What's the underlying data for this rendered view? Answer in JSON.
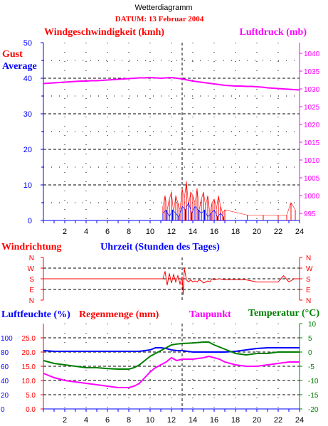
{
  "header": {
    "title": "Wetterdiagramm",
    "date": "DATUM: 13 Februar 2004"
  },
  "colors": {
    "wind_gust": "#ff0000",
    "wind_avg": "#0000ff",
    "pressure": "#ff00ff",
    "direction": "#ff0000",
    "humidity": "#0000ff",
    "rain": "#ff0000",
    "dewpoint": "#ff00ff",
    "temperature": "#008000",
    "axis": "#000000"
  },
  "chart_data": [
    {
      "id": "wind",
      "type": "line",
      "title": "",
      "labels": {
        "left_title": "Windgeschwindigkeit (kmh)",
        "right_title": "Luftdruck (mb)",
        "gust": "Gust",
        "average": "Average"
      },
      "xlim": [
        0,
        24
      ],
      "xticks": [
        "2",
        "4",
        "6",
        "8",
        "10",
        "12",
        "14",
        "16",
        "18",
        "20",
        "22",
        "24"
      ],
      "xticks_minor": [
        0,
        1,
        2,
        3,
        4,
        5,
        6,
        7,
        8,
        9,
        10,
        11,
        12,
        13,
        14,
        15,
        16,
        17,
        18,
        19,
        20,
        21,
        22,
        23,
        24
      ],
      "ylim_left": [
        0,
        50
      ],
      "yticks_left": [
        "0",
        "10",
        "20",
        "30",
        "40",
        "50"
      ],
      "ylim_right": [
        993,
        1043
      ],
      "yticks_right": [
        "995",
        "1000",
        "1005",
        "1010",
        "1015",
        "1020",
        "1025",
        "1030",
        "1035",
        "1040"
      ],
      "grid_y_left": [
        5,
        10,
        15,
        20,
        25,
        30,
        35,
        40,
        45
      ],
      "current_time_marker_x": 13,
      "series": [
        {
          "name": "Luftdruck (mb)",
          "axis": "right",
          "kind": "line",
          "x": [
            0,
            0.5,
            1,
            1.5,
            2,
            2.5,
            3,
            3.5,
            4,
            4.5,
            5,
            5.5,
            6,
            6.5,
            7,
            7.5,
            8,
            8.5,
            9,
            9.5,
            10,
            10.5,
            11,
            11.5,
            12,
            12.5,
            13,
            13.5,
            14,
            14.5,
            15,
            15.5,
            16,
            16.5,
            17,
            17.5,
            18,
            18.5,
            19,
            19.5,
            20,
            20.5,
            21,
            21.5,
            22,
            22.5,
            23,
            23.5,
            24
          ],
          "y": [
            1031.5,
            1031.6,
            1031.7,
            1031.8,
            1031.9,
            1032.0,
            1032.1,
            1032.2,
            1032.2,
            1032.3,
            1032.3,
            1032.4,
            1032.5,
            1032.6,
            1032.7,
            1032.8,
            1032.9,
            1033.0,
            1033.1,
            1033.1,
            1033.2,
            1033.1,
            1033.0,
            1033.1,
            1033.2,
            1033.0,
            1032.8,
            1032.5,
            1032.2,
            1032.0,
            1031.8,
            1031.6,
            1031.4,
            1031.2,
            1031.0,
            1030.9,
            1030.8,
            1030.8,
            1030.7,
            1030.7,
            1030.6,
            1030.5,
            1030.3,
            1030.2,
            1030.1,
            1030.0,
            1029.9,
            1029.8,
            1029.7
          ]
        },
        {
          "name": "Gust",
          "axis": "left",
          "kind": "spikes",
          "x": [
            11.2,
            11.4,
            11.6,
            11.8,
            12.0,
            12.2,
            12.4,
            12.6,
            12.8,
            13.0,
            13.2,
            13.4,
            13.6,
            13.8,
            14.0,
            14.2,
            14.4,
            14.6,
            14.8,
            15.0,
            15.2,
            15.4,
            15.6,
            15.8,
            16.0,
            16.2,
            16.4,
            16.6,
            16.8,
            17.0,
            19.1,
            20.6,
            22.0,
            22.8,
            23.2,
            23.6
          ],
          "y": [
            4,
            7,
            3,
            6,
            8,
            2,
            7,
            5,
            3,
            9,
            6,
            11,
            4,
            8,
            7,
            5,
            9,
            3,
            6,
            8,
            4,
            7,
            2,
            5,
            6,
            3,
            7,
            4,
            2,
            3,
            1.5,
            1.5,
            1.5,
            1.5,
            5,
            3
          ]
        },
        {
          "name": "Average",
          "axis": "left",
          "kind": "spikes",
          "x": [
            11.2,
            11.5,
            11.8,
            12.1,
            12.4,
            12.7,
            13.0,
            13.3,
            13.6,
            13.9,
            14.2,
            14.5,
            14.8,
            15.1,
            15.4,
            15.7,
            16.0,
            16.3,
            16.6,
            16.9
          ],
          "y": [
            2,
            3,
            1,
            3,
            2,
            1,
            4,
            3,
            5,
            2,
            4,
            3,
            2,
            3,
            1,
            2,
            3,
            1,
            2,
            1
          ]
        }
      ]
    },
    {
      "id": "direction",
      "type": "line",
      "title": "",
      "labels": {
        "left_title": "Windrichtung",
        "x_title": "Uhrzeit (Stunden des Tages)"
      },
      "xlim": [
        0,
        24
      ],
      "yticks": [
        "N",
        "W",
        "S",
        "E",
        "N"
      ],
      "series": [
        {
          "name": "Windrichtung",
          "kind": "line",
          "x": [
            0,
            11.2,
            11.4,
            11.6,
            11.8,
            12.0,
            12.2,
            12.4,
            12.6,
            12.8,
            13.0,
            13.1,
            13.2,
            13.4,
            13.6,
            13.8,
            14.0,
            14.2,
            14.4,
            14.6,
            14.8,
            15.0,
            15.2,
            15.4,
            15.6,
            15.8,
            16.0,
            16.5,
            17.0,
            18.0,
            19.0,
            20.0,
            21.0,
            22.0,
            22.5,
            23.0,
            23.5,
            24.0
          ],
          "y": [
            2.0,
            2.0,
            1.3,
            2.6,
            1.5,
            2.4,
            1.6,
            2.3,
            1.7,
            2.5,
            1.8,
            3.5,
            1.0,
            2.1,
            2.3,
            2.1,
            2.3,
            2.2,
            2.3,
            2.1,
            2.2,
            2.4,
            2.3,
            2.2,
            2.3,
            2.0,
            2.1,
            2.0,
            2.1,
            2.1,
            2.1,
            2.3,
            2.3,
            2.3,
            1.7,
            2.3,
            2.0,
            2.0
          ]
        }
      ]
    },
    {
      "id": "climate",
      "type": "line",
      "title": "",
      "labels": {
        "humidity_title": "Luftfeuchte (%)",
        "rain_title": "Regenmenge (mm)",
        "dewpoint_title": "Taupunkt",
        "temperature_title": "Temperatur (°C)"
      },
      "xlim": [
        0,
        24
      ],
      "xticks": [
        "2",
        "4",
        "6",
        "8",
        "10",
        "12",
        "14",
        "16",
        "18",
        "20",
        "22",
        "24"
      ],
      "ylim_humidity": [
        0,
        120
      ],
      "yticks_humidity": [
        "0",
        "20",
        "40",
        "60",
        "80",
        "100"
      ],
      "ylim_rain": [
        0,
        30
      ],
      "yticks_rain": [
        "0.0",
        "5.0",
        "10.0",
        "15.0",
        "20.0",
        "25.0"
      ],
      "ylim_temperature": [
        -20,
        10
      ],
      "yticks_temperature": [
        "-20",
        "-15",
        "-10",
        "-5",
        "0",
        "5",
        "10"
      ],
      "current_time_marker_x": 13,
      "series": [
        {
          "name": "Luftfeuchte (%)",
          "axis": "humidity",
          "kind": "line",
          "x": [
            0,
            1,
            2,
            3,
            4,
            5,
            6,
            7,
            8,
            9,
            10,
            10.5,
            11,
            11.5,
            12,
            12.5,
            13,
            13.5,
            14,
            15,
            16,
            17,
            18,
            19,
            20,
            21,
            22,
            23,
            24
          ],
          "y": [
            82,
            81,
            81,
            81,
            81,
            81,
            81,
            81,
            81,
            81,
            83,
            86,
            86,
            85,
            83,
            82,
            82,
            81,
            80,
            80,
            80,
            80,
            81,
            83,
            85,
            86,
            86,
            86,
            86
          ]
        },
        {
          "name": "Taupunkt",
          "axis": "temperature",
          "kind": "line",
          "x": [
            0,
            1,
            2,
            3,
            4,
            5,
            6,
            7,
            8,
            8.5,
            9,
            9.5,
            10,
            10.5,
            11,
            11.5,
            12,
            12.5,
            13,
            14,
            15,
            15.5,
            16,
            16.5,
            17,
            18,
            19,
            20,
            21,
            22,
            23,
            24
          ],
          "y": [
            -7.5,
            -9.0,
            -10.0,
            -10.5,
            -11.0,
            -11.5,
            -12.0,
            -12.5,
            -12.5,
            -12.0,
            -11.0,
            -9.0,
            -7.0,
            -5.5,
            -4.5,
            -3.5,
            -2.0,
            -3.0,
            -2.5,
            -2.5,
            -2.0,
            -1.5,
            -2.0,
            -2.5,
            -3.5,
            -4.5,
            -5.0,
            -5.0,
            -4.5,
            -4.0,
            -3.5,
            -3.5
          ]
        },
        {
          "name": "Temperatur (°C)",
          "axis": "temperature",
          "kind": "line",
          "x": [
            0,
            0.5,
            1,
            2,
            3,
            4,
            5,
            6,
            7,
            8,
            8.5,
            9,
            9.5,
            10,
            10.5,
            11,
            11.5,
            12,
            12.5,
            13,
            14,
            15,
            15.5,
            16,
            17,
            18,
            19,
            20,
            21,
            22,
            23,
            24
          ],
          "y": [
            -3.0,
            -3.5,
            -4.0,
            -4.5,
            -5.0,
            -5.5,
            -5.5,
            -5.8,
            -6.0,
            -6.0,
            -5.5,
            -4.5,
            -3.0,
            -1.5,
            -0.5,
            0.5,
            1.5,
            2.5,
            2.8,
            3.0,
            3.2,
            3.5,
            3.5,
            2.5,
            1.0,
            -0.5,
            -1.0,
            -0.5,
            -0.5,
            0,
            0,
            0
          ]
        }
      ]
    }
  ]
}
